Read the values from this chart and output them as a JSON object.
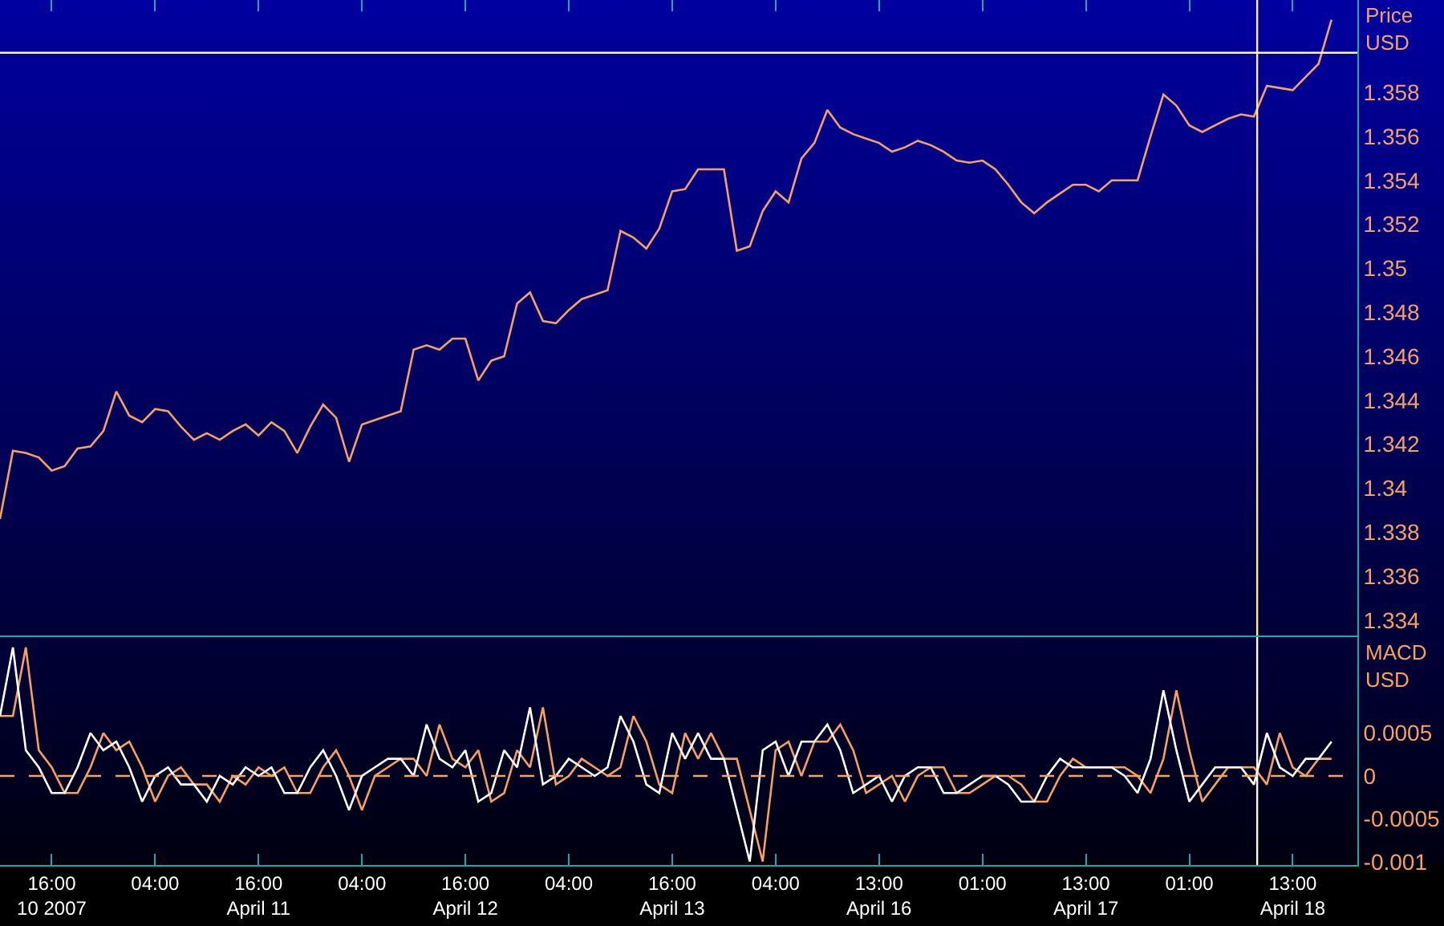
{
  "chart_data": [
    {
      "type": "line",
      "ylabel": "Price\nUSD",
      "tick_labels": "y",
      "categories": [
        null,
        null,
        null,
        null,
        null,
        null,
        null,
        null,
        null,
        null,
        null,
        null,
        null,
        null,
        null,
        null,
        null,
        null,
        null,
        null,
        null,
        null,
        null,
        null,
        null,
        null,
        null,
        null,
        null,
        null,
        null,
        null,
        null,
        null,
        null,
        null,
        null,
        null,
        null,
        null,
        null,
        null,
        null,
        null,
        null,
        null,
        null,
        null,
        null,
        null,
        null,
        null,
        null,
        null,
        null,
        null,
        null,
        null,
        null,
        null,
        null,
        null,
        null,
        null,
        null,
        null,
        null,
        null,
        null,
        null,
        null,
        null,
        null,
        null,
        null,
        null,
        null,
        null,
        null,
        null,
        null,
        null,
        null,
        null,
        null,
        null,
        null,
        null,
        null,
        null,
        null,
        null,
        null,
        null,
        null,
        null,
        null,
        null,
        null,
        null,
        null,
        null,
        null,
        null,
        null,
        null
      ],
      "series": [
        {
          "color": "#f7a066",
          "values": [
            1.3386,
            1.3417,
            1.3416,
            1.3414,
            1.3408,
            1.341,
            1.3418,
            1.3419,
            1.3426,
            1.3444,
            1.3433,
            1.343,
            1.3436,
            1.3435,
            1.3428,
            1.3422,
            1.3425,
            1.3422,
            1.3426,
            1.3429,
            1.3424,
            1.343,
            1.3426,
            1.3416,
            1.3428,
            1.3438,
            1.3432,
            1.3412,
            1.3429,
            1.3431,
            1.3433,
            1.3435,
            1.3463,
            1.3465,
            1.3463,
            1.3468,
            1.3468,
            1.3449,
            1.3458,
            1.346,
            1.3484,
            1.3489,
            1.3476,
            1.3475,
            1.3481,
            1.3486,
            1.3488,
            1.349,
            1.3517,
            1.3514,
            1.3509,
            1.3518,
            1.3535,
            1.3536,
            1.3545,
            1.3545,
            1.3545,
            1.3508,
            1.351,
            1.3526,
            1.3535,
            1.353,
            1.355,
            1.3557,
            1.3572,
            1.3564,
            1.3561,
            1.3559,
            1.3557,
            1.3553,
            1.3555,
            1.3558,
            1.3556,
            1.3553,
            1.3549,
            1.3548,
            1.3549,
            1.3545,
            1.3538,
            1.353,
            1.3525,
            1.353,
            1.3534,
            1.3538,
            1.3538,
            1.3535,
            1.354,
            1.354,
            1.354,
            1.356,
            1.3579,
            1.3574,
            1.3565,
            1.3562,
            1.3565,
            1.3568,
            1.357,
            1.3569,
            1.3583,
            1.3582,
            1.3581,
            1.3587,
            1.3593,
            1.3613,
            null,
            null
          ]
        }
      ],
      "ylim": [
        1.3333,
        1.3622
      ],
      "yticks": [
        1.334,
        1.336,
        1.338,
        1.34,
        1.342,
        1.344,
        1.346,
        1.348,
        1.35,
        1.352,
        1.354,
        1.356,
        1.358
      ],
      "ref_lines": [
        {
          "axis": "y",
          "value": 1.3598,
          "color": "#fff4c0",
          "line_style": "solid"
        }
      ]
    },
    {
      "type": "line",
      "ylabel": "MACD\nUSD",
      "categories": [
        null,
        null,
        null,
        null,
        "16:00\n10 2007",
        null,
        null,
        null,
        null,
        null,
        null,
        null,
        "04:00",
        null,
        null,
        null,
        null,
        null,
        null,
        null,
        "16:00\nApril 11",
        null,
        null,
        null,
        null,
        null,
        null,
        null,
        "04:00",
        null,
        null,
        null,
        null,
        null,
        null,
        null,
        "16:00\nApril 12",
        null,
        null,
        null,
        null,
        null,
        null,
        null,
        "04:00",
        null,
        null,
        null,
        null,
        null,
        null,
        null,
        "16:00\nApril 13",
        null,
        null,
        null,
        null,
        null,
        null,
        null,
        "04:00",
        null,
        null,
        null,
        null,
        null,
        null,
        null,
        "13:00\nApril 16",
        null,
        null,
        null,
        null,
        null,
        null,
        null,
        "01:00",
        null,
        null,
        null,
        null,
        null,
        null,
        null,
        "13:00\nApril 17",
        null,
        null,
        null,
        null,
        null,
        null,
        null,
        "01:00",
        null,
        null,
        null,
        null,
        null,
        null,
        null,
        "13:00\nApril 18",
        null,
        null,
        null,
        null,
        null
      ],
      "series": [
        {
          "color": "#f7a066",
          "values": [
            0.0007,
            0.0007,
            0.0015,
            0.0003,
            0.0001,
            -0.0002,
            -0.0002,
            0.0001,
            0.0005,
            0.0003,
            0.0004,
            0.0001,
            -0.0003,
            0,
            0.0001,
            -0.0001,
            -0.0001,
            -0.0003,
            0,
            -0.0001,
            0.0001,
            0,
            0.0001,
            -0.0002,
            -0.0002,
            0.0001,
            0.0003,
            0,
            -0.0004,
            0,
            0.0001,
            0.0002,
            0.0002,
            0,
            0.0006,
            0.0002,
            0.0001,
            0.0003,
            -0.0003,
            -0.0002,
            0.0003,
            0.0001,
            0.0008,
            -0.0001,
            0,
            0.0002,
            0.0001,
            0,
            0.0001,
            0.0007,
            0.0004,
            -0.0001,
            -0.0002,
            0.0005,
            0.0002,
            0.0005,
            0.0002,
            0.0002,
            -0.0004,
            -0.001,
            0.0003,
            0.0004,
            0,
            0.0004,
            0.0004,
            0.0006,
            0.0003,
            -0.0002,
            -0.0001,
            0,
            -0.0003,
            0,
            0.0001,
            0.0001,
            -0.0002,
            -0.0002,
            -0.0001,
            0,
            0,
            -0.0001,
            -0.0003,
            -0.0003,
            0,
            0.0002,
            0.0001,
            0.0001,
            0.0001,
            0.0001,
            0,
            -0.0002,
            0.0002,
            0.001,
            0.0003,
            -0.0003,
            -0.0001,
            0.0001,
            0.0001,
            0.0001,
            -0.0001,
            0.0005,
            0.0001,
            0,
            0.0002,
            0.0002,
            null,
            null
          ]
        },
        {
          "color": "#ffffff",
          "values": [
            0.0007,
            0.0015,
            0.0003,
            0.0001,
            -0.0002,
            -0.0002,
            0.0001,
            0.0005,
            0.0003,
            0.0004,
            0.0001,
            -0.0003,
            0,
            0.0001,
            -0.0001,
            -0.0001,
            -0.0003,
            0,
            -0.0001,
            0.0001,
            0,
            0.0001,
            -0.0002,
            -0.0002,
            0.0001,
            0.0003,
            0,
            -0.0004,
            0,
            0.0001,
            0.0002,
            0.0002,
            0,
            0.0006,
            0.0002,
            0.0001,
            0.0003,
            -0.0003,
            -0.0002,
            0.0003,
            0.0001,
            0.0008,
            -0.0001,
            0,
            0.0002,
            0.0001,
            0,
            0.0001,
            0.0007,
            0.0004,
            -0.0001,
            -0.0002,
            0.0005,
            0.0002,
            0.0005,
            0.0002,
            0.0002,
            -0.0004,
            -0.001,
            0.0003,
            0.0004,
            0,
            0.0004,
            0.0004,
            0.0006,
            0.0003,
            -0.0002,
            -0.0001,
            0,
            -0.0003,
            0,
            0.0001,
            0.0001,
            -0.0002,
            -0.0002,
            -0.0001,
            0,
            0,
            -0.0001,
            -0.0003,
            -0.0003,
            0,
            0.0002,
            0.0001,
            0.0001,
            0.0001,
            0.0001,
            0,
            -0.0002,
            0.0002,
            0.001,
            0.0003,
            -0.0003,
            -0.0001,
            0.0001,
            0.0001,
            0.0001,
            -0.0001,
            0.0005,
            0.0001,
            0,
            0.0002,
            0.0002,
            0.0004,
            null,
            null
          ]
        }
      ],
      "ylim": [
        -0.00104,
        0.00162
      ],
      "yticks": [
        -0.001,
        -0.0005,
        0,
        0.0005
      ],
      "ref_lines": [
        {
          "axis": "y",
          "value": 0,
          "color": "#f7a066",
          "line_style": "dashed"
        }
      ]
    }
  ]
}
